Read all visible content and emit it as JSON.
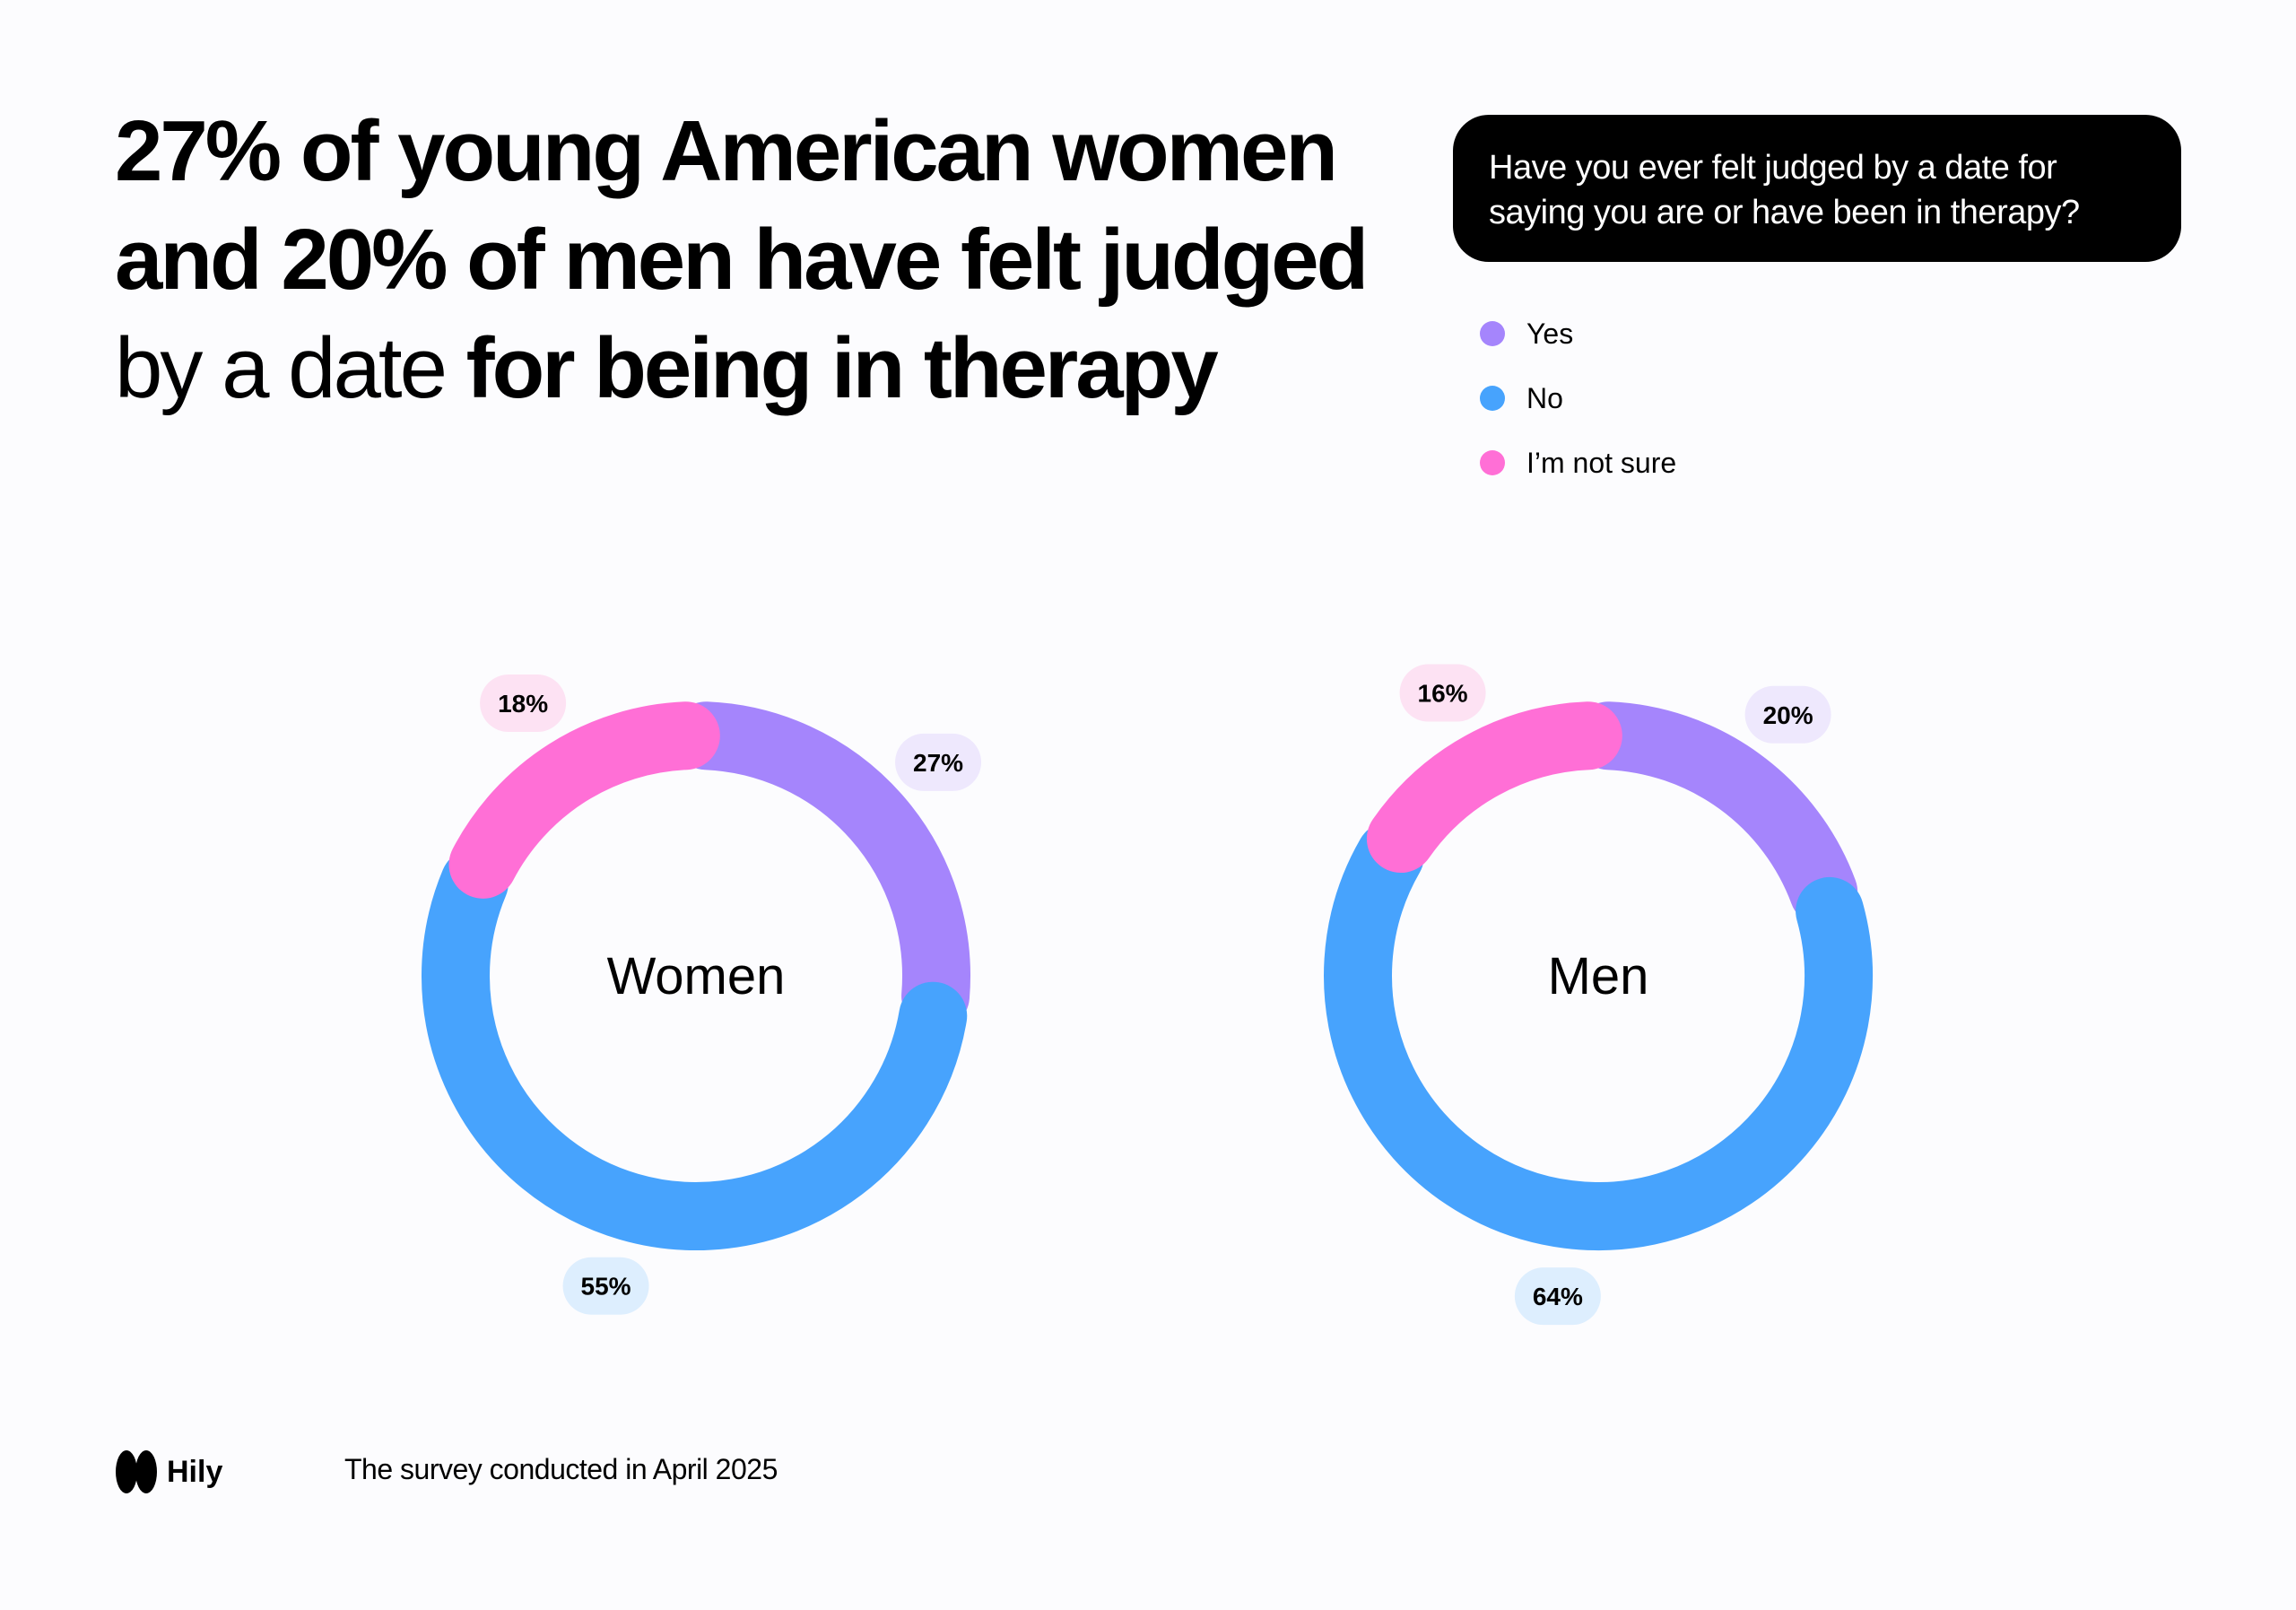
{
  "headline": {
    "part1": "27% of young American women and 20% of men have felt judged",
    "part2": " by a date ",
    "part3": "for being in therapy"
  },
  "question": "Have you ever felt judged by a date for saying you are or have been in therapy?",
  "legend": [
    {
      "label": "Yes",
      "color": "#a585fc"
    },
    {
      "label": "No",
      "color": "#47a3fd"
    },
    {
      "label": "I’m not sure",
      "color": "#ff6fd6"
    }
  ],
  "chart_data": [
    {
      "type": "pie",
      "subtype": "donut",
      "center_label": "Women",
      "slices": [
        {
          "name": "Yes",
          "value": 27,
          "label": "27%",
          "color": "#a585fc",
          "label_bg": "#eee8fd"
        },
        {
          "name": "No",
          "value": 55,
          "label": "55%",
          "color": "#47a3fd",
          "label_bg": "#ddeefe"
        },
        {
          "name": "I’m not sure",
          "value": 18,
          "label": "18%",
          "color": "#ff6fd6",
          "label_bg": "#fde2f3"
        }
      ]
    },
    {
      "type": "pie",
      "subtype": "donut",
      "center_label": "Men",
      "slices": [
        {
          "name": "Yes",
          "value": 20,
          "label": "20%",
          "color": "#a585fc",
          "label_bg": "#eee8fd"
        },
        {
          "name": "No",
          "value": 64,
          "label": "64%",
          "color": "#47a3fd",
          "label_bg": "#ddeefe"
        },
        {
          "name": "I’m not sure",
          "value": 16,
          "label": "16%",
          "color": "#ff6fd6",
          "label_bg": "#fde2f3"
        }
      ]
    }
  ],
  "footer": {
    "brand": "Hily",
    "logo_icon": "hily-logo-icon",
    "note": "The survey conducted in April 2025"
  }
}
